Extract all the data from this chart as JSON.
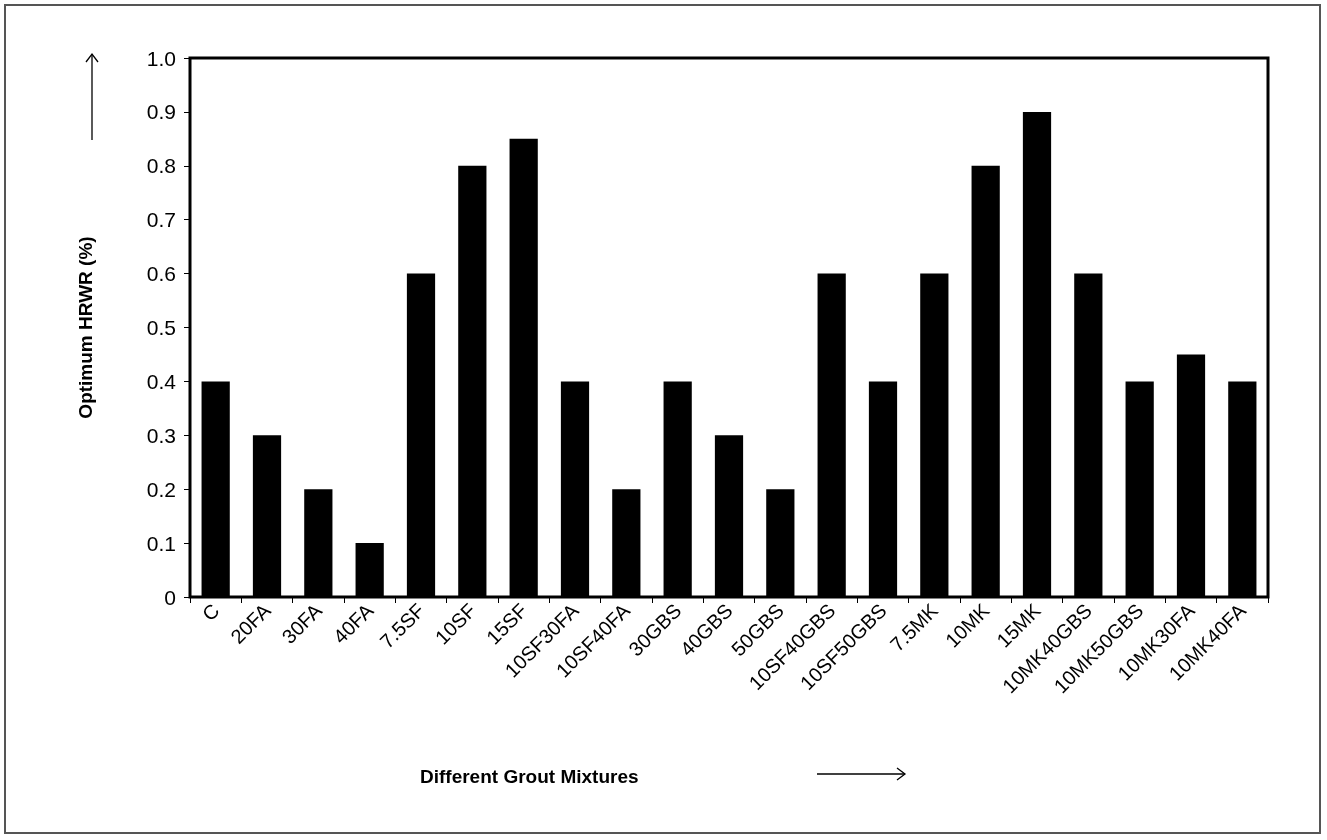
{
  "chart_data": {
    "type": "bar",
    "xlabel": "Different Grout Mixtures",
    "ylabel": "Optimum HRWR (%)",
    "categories": [
      "C",
      "20FA",
      "30FA",
      "40FA",
      "7.5SF",
      "10SF",
      "15SF",
      "10SF30FA",
      "10SF40FA",
      "30GBS",
      "40GBS",
      "50GBS",
      "10SF40GBS",
      "10SF50GBS",
      "7.5MK",
      "10MK",
      "15MK",
      "10MK40GBS",
      "10MK50GBS",
      "10MK30FA",
      "10MK40FA"
    ],
    "values": [
      0.4,
      0.3,
      0.2,
      0.1,
      0.6,
      0.8,
      0.85,
      0.4,
      0.2,
      0.4,
      0.3,
      0.2,
      0.6,
      0.4,
      0.6,
      0.8,
      0.9,
      0.6,
      0.4,
      0.45,
      0.4
    ],
    "color": "#000000",
    "ylim": [
      0,
      1
    ],
    "yticks": [
      0,
      0.1,
      0.2,
      0.3,
      0.4,
      0.5,
      0.6,
      0.7,
      0.8,
      0.9,
      {
        "value": 1,
        "label": "1.0"
      }
    ],
    "grid": false
  }
}
